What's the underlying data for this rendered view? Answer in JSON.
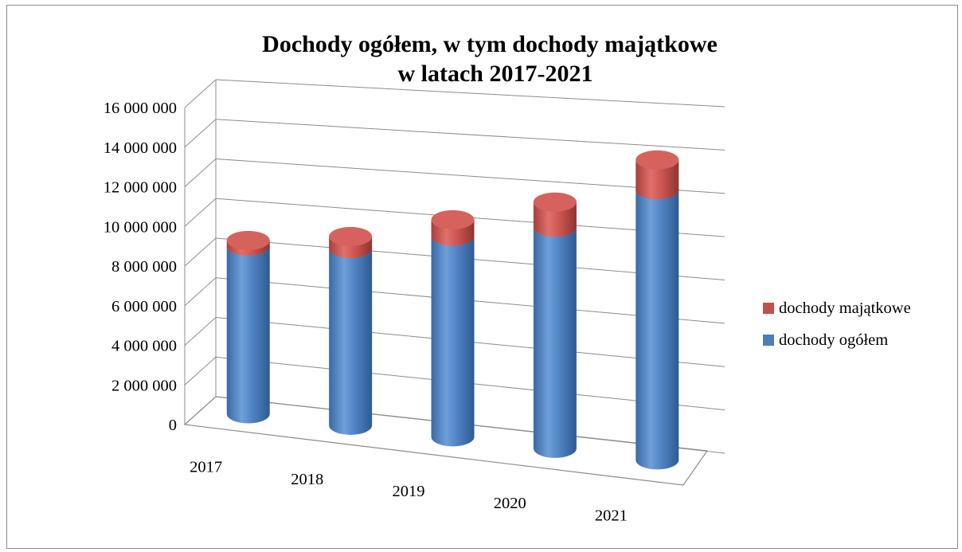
{
  "chart_data": {
    "type": "bar",
    "title_line1": "Dochody ogółem, w tym dochody majątkowe",
    "title_line2": "w latach 2017-2021",
    "categories": [
      "2017",
      "2018",
      "2019",
      "2020",
      "2021"
    ],
    "series": [
      {
        "name": "dochody ogółem",
        "color": "#4a7ebb",
        "values": [
          8400000,
          8700000,
          9700000,
          10500000,
          12600000
        ]
      },
      {
        "name": "dochody majątkowe",
        "color": "#c0504d",
        "values": [
          300000,
          600000,
          800000,
          1200000,
          1400000
        ]
      }
    ],
    "stacked": true,
    "ylim": [
      0,
      16000000
    ],
    "y_ticks": [
      {
        "value": 0,
        "label": "0"
      },
      {
        "value": 2000000,
        "label": "2 000 000"
      },
      {
        "value": 4000000,
        "label": "4 000 000"
      },
      {
        "value": 6000000,
        "label": "6 000 000"
      },
      {
        "value": 8000000,
        "label": "8 000 000"
      },
      {
        "value": 10000000,
        "label": "10 000 000"
      },
      {
        "value": 12000000,
        "label": "12 000 000"
      },
      {
        "value": 14000000,
        "label": "14 000 000"
      },
      {
        "value": 16000000,
        "label": "16 000 000"
      }
    ],
    "legend": [
      {
        "label": "dochody majątkowe",
        "color": "#c0504d"
      },
      {
        "label": "dochody ogółem",
        "color": "#4a7ebb"
      }
    ],
    "legend_position": "right",
    "grid": true,
    "style": "3d-cylinder"
  }
}
